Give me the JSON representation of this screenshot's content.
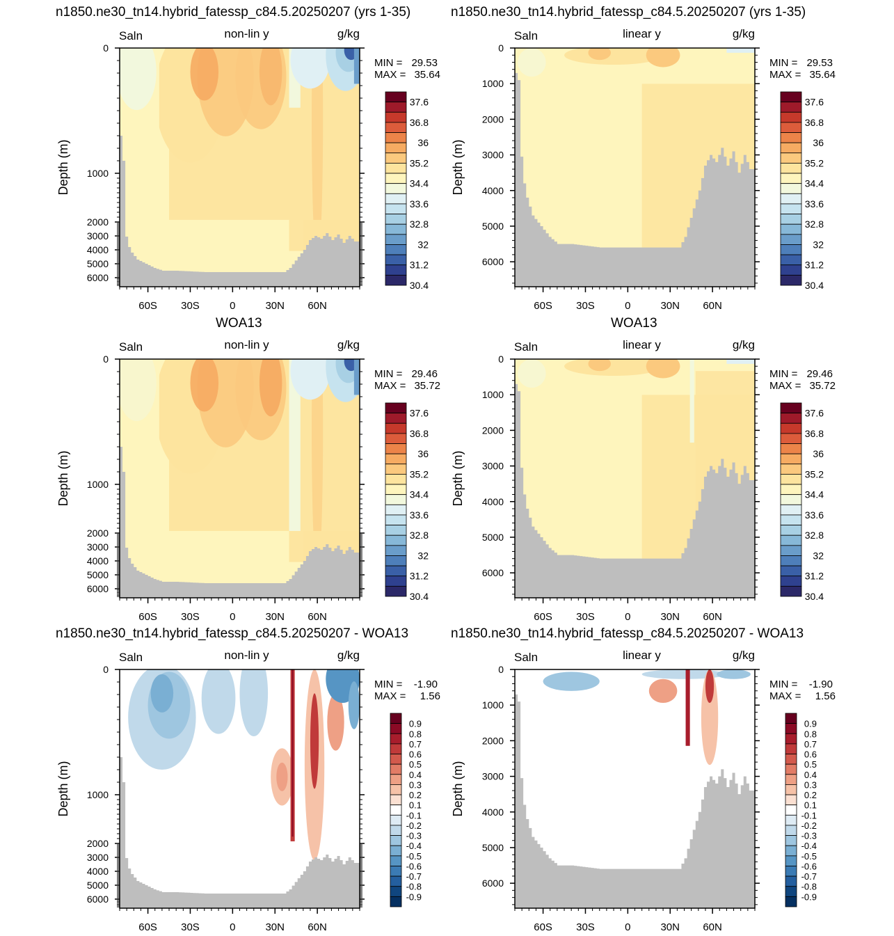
{
  "titles": {
    "model": "n1850.ne30_tn14.hybrid_fatessp_c84.5.20250207 (yrs 1-35)",
    "obs": "WOA13",
    "diff": "n1850.ne30_tn14.hybrid_fatessp_c84.5.20250207 - WOA13"
  },
  "labels": {
    "field": "Saln",
    "units": "g/kg",
    "nonlin": "non-lin y",
    "linear": "linear y",
    "ylabel": "Depth (m)"
  },
  "colorbars": {
    "salinity_levels": [
      "37.6",
      "36.8",
      "36",
      "35.2",
      "34.4",
      "33.6",
      "32.8",
      "32",
      "31.2",
      "30.4"
    ],
    "salinity_colors": [
      "#67001f",
      "#9e1a2a",
      "#c6392b",
      "#dc5c3b",
      "#ec8449",
      "#f6ab62",
      "#fbc97e",
      "#fde49e",
      "#fef5bd",
      "#f2f8dd",
      "#e0f0f4",
      "#c6e3ef",
      "#a8d0e4",
      "#87b8d8",
      "#6a9dca",
      "#4e7fba",
      "#3a60a7",
      "#2f418f",
      "#2b2868"
    ],
    "diff_levels": [
      "0.9",
      "0.8",
      "0.7",
      "0.6",
      "0.5",
      "0.4",
      "0.3",
      "0.2",
      "0.1",
      "-0.1",
      "-0.2",
      "-0.3",
      "-0.4",
      "-0.5",
      "-0.6",
      "-0.7",
      "-0.8",
      "-0.9"
    ],
    "diff_colors": [
      "#67001f",
      "#8b0a25",
      "#a81d2c",
      "#c03a3a",
      "#d35a4d",
      "#e27c66",
      "#eea085",
      "#f6c2a8",
      "#fbe0d2",
      "#ffffff",
      "#deebf4",
      "#c0d9ea",
      "#9ec6e0",
      "#7aafd3",
      "#5695c4",
      "#3b7bb4",
      "#245f9f",
      "#10467f",
      "#053061"
    ]
  },
  "chart_data": [
    {
      "type": "heatmap",
      "title": "n1850.ne30_tn14.hybrid_fatessp_c84.5.20250207 (yrs 1-35)",
      "subtitle": "non-lin y",
      "field": "Saln",
      "units": "g/kg",
      "ylabel": "Depth (m)",
      "yticks": [
        "0",
        "1000",
        "2000",
        "3000",
        "4000",
        "5000",
        "6000"
      ],
      "xticks": [
        "60S",
        "30S",
        "0",
        "30N",
        "60N"
      ],
      "xlim": [
        -80,
        90
      ],
      "min": "29.53",
      "max": "35.64"
    },
    {
      "type": "heatmap",
      "title": "n1850.ne30_tn14.hybrid_fatessp_c84.5.20250207 (yrs 1-35)",
      "subtitle": "linear y",
      "field": "Saln",
      "units": "g/kg",
      "ylabel": "Depth (m)",
      "yticks": [
        "0",
        "1000",
        "2000",
        "3000",
        "4000",
        "5000",
        "6000"
      ],
      "xticks": [
        "60S",
        "30S",
        "0",
        "30N",
        "60N"
      ],
      "xlim": [
        -80,
        90
      ],
      "min": "29.53",
      "max": "35.64"
    },
    {
      "type": "heatmap",
      "title": "WOA13",
      "subtitle": "non-lin y",
      "field": "Saln",
      "units": "g/kg",
      "ylabel": "Depth (m)",
      "yticks": [
        "0",
        "1000",
        "2000",
        "3000",
        "4000",
        "5000",
        "6000"
      ],
      "xticks": [
        "60S",
        "30S",
        "0",
        "30N",
        "60N"
      ],
      "xlim": [
        -80,
        90
      ],
      "min": "29.46",
      "max": "35.72"
    },
    {
      "type": "heatmap",
      "title": "WOA13",
      "subtitle": "linear y",
      "field": "Saln",
      "units": "g/kg",
      "ylabel": "Depth (m)",
      "yticks": [
        "0",
        "1000",
        "2000",
        "3000",
        "4000",
        "5000",
        "6000"
      ],
      "xticks": [
        "60S",
        "30S",
        "0",
        "30N",
        "60N"
      ],
      "xlim": [
        -80,
        90
      ],
      "min": "29.46",
      "max": "35.72"
    },
    {
      "type": "heatmap",
      "title": "n1850.ne30_tn14.hybrid_fatessp_c84.5.20250207 - WOA13",
      "subtitle": "non-lin y",
      "field": "Saln",
      "units": "g/kg",
      "ylabel": "Depth (m)",
      "yticks": [
        "0",
        "1000",
        "2000",
        "3000",
        "4000",
        "5000",
        "6000"
      ],
      "xticks": [
        "60S",
        "30S",
        "0",
        "30N",
        "60N"
      ],
      "xlim": [
        -80,
        90
      ],
      "min": "-1.90",
      "max": "1.56"
    },
    {
      "type": "heatmap",
      "title": "n1850.ne30_tn14.hybrid_fatessp_c84.5.20250207 - WOA13",
      "subtitle": "linear y",
      "field": "Saln",
      "units": "g/kg",
      "ylabel": "Depth (m)",
      "yticks": [
        "0",
        "1000",
        "2000",
        "3000",
        "4000",
        "5000",
        "6000"
      ],
      "xticks": [
        "60S",
        "30S",
        "0",
        "30N",
        "60N"
      ],
      "xlim": [
        -80,
        90
      ],
      "min": "-1.90",
      "max": "1.56"
    }
  ]
}
